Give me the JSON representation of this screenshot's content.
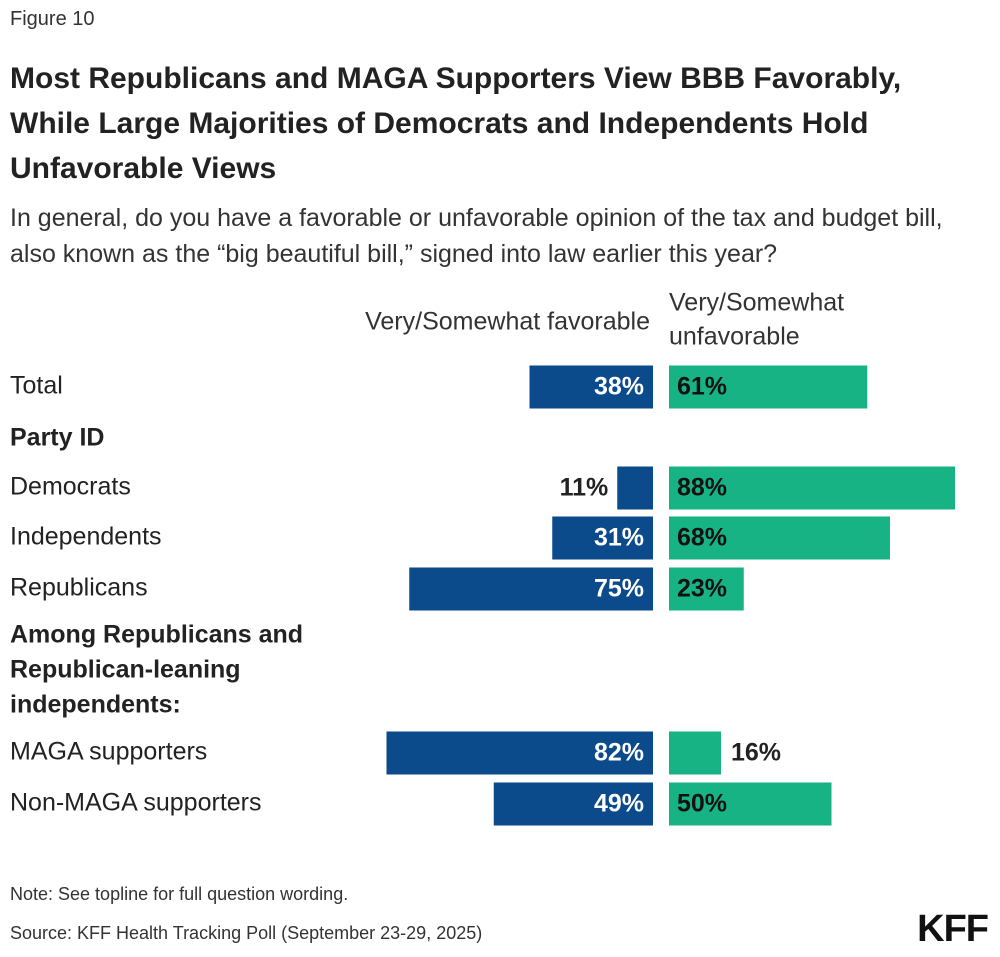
{
  "figure_label": "Figure 10",
  "title": "Most Republicans and MAGA Supporters View BBB Favorably, While Large Majorities of Democrats and Independents Hold Unfavorable Views",
  "subtitle": "In general, do you have a favorable or unfavorable opinion of the tax and budget bill, also known as the “big beautiful bill,” signed into law earlier this year?",
  "note": "Note: See topline for full question wording.",
  "source": "Source: KFF Health Tracking Poll (September 23-29, 2025)",
  "logo": "KFF",
  "colors": {
    "favorable": "#0b4a8b",
    "unfavorable": "#17b384"
  },
  "chart_data": {
    "type": "bar",
    "orientation": "diverging-horizontal",
    "series": [
      {
        "name": "Very/Somewhat favorable",
        "label_lines": [
          "Very/Somewhat favorable"
        ],
        "color": "#0b4a8b"
      },
      {
        "name": "Very/Somewhat unfavorable",
        "label_lines": [
          "Very/Somewhat",
          "unfavorable"
        ],
        "color": "#17b384"
      }
    ],
    "rows": [
      {
        "type": "data",
        "label": "Total",
        "favorable": 38,
        "unfavorable": 61
      },
      {
        "type": "header",
        "label_lines": [
          "Party ID"
        ]
      },
      {
        "type": "data",
        "label": "Democrats",
        "favorable": 11,
        "unfavorable": 88
      },
      {
        "type": "data",
        "label": "Independents",
        "favorable": 31,
        "unfavorable": 68
      },
      {
        "type": "data",
        "label": "Republicans",
        "favorable": 75,
        "unfavorable": 23
      },
      {
        "type": "header",
        "label_lines": [
          "Among Republicans and",
          "Republican-leaning",
          "independents:"
        ]
      },
      {
        "type": "data",
        "label": "MAGA supporters",
        "favorable": 82,
        "unfavorable": 16
      },
      {
        "type": "data",
        "label": "Non-MAGA supporters",
        "favorable": 49,
        "unfavorable": 50
      }
    ],
    "value_suffix": "%"
  }
}
